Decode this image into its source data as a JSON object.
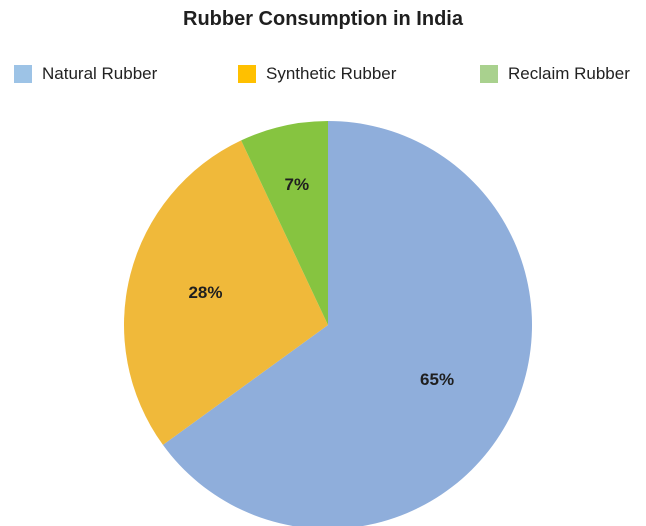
{
  "chart_data": {
    "type": "pie",
    "title": "Rubber Consumption in India",
    "legend_position": "top",
    "slices": [
      {
        "name": "Natural Rubber",
        "value": 65,
        "label": "65%",
        "color": "#8faedb",
        "legend_color": "#9dc3e6"
      },
      {
        "name": "Synthetic Rubber",
        "value": 28,
        "label": "28%",
        "color": "#f0b93a",
        "legend_color": "#ffc000"
      },
      {
        "name": "Reclaim Rubber",
        "value": 7,
        "label": "7%",
        "color": "#86c440",
        "legend_color": "#a9d18e"
      }
    ]
  }
}
